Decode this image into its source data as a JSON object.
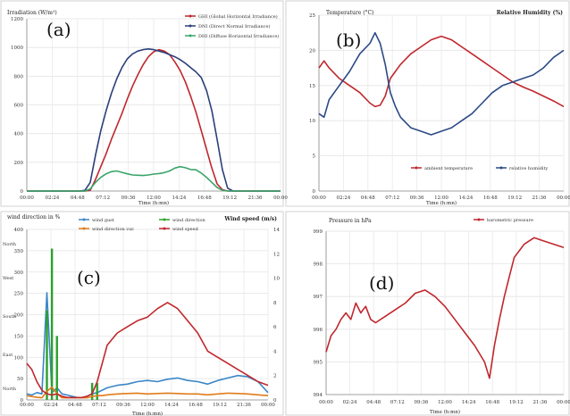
{
  "chart_data": [
    {
      "type": "line",
      "panel_label": "(a)",
      "title": "Irradiation (W/m²)",
      "xlabel": "Time (h:mn)",
      "x_ticks": [
        "00:00",
        "02:24",
        "04:48",
        "07:12",
        "09:36",
        "12:00",
        "14:24",
        "16:48",
        "19:12",
        "21:36",
        "00:00"
      ],
      "y_ticks": [
        "0",
        "200",
        "400",
        "600",
        "800",
        "1000",
        "1200"
      ],
      "ylim": [
        0,
        1200
      ],
      "grid": true,
      "legend_position": "top-right",
      "x": [
        0,
        1,
        2,
        3,
        4,
        5,
        5.5,
        6,
        6.5,
        7,
        7.5,
        8,
        8.5,
        9,
        9.5,
        10,
        10.5,
        11,
        11.5,
        12,
        12.5,
        13,
        13.5,
        14,
        14.5,
        15,
        15.5,
        16,
        16.5,
        17,
        17.5,
        18,
        18.5,
        19,
        19.5,
        20,
        21,
        22,
        23,
        24
      ],
      "series": [
        {
          "name": "GHI (Global Horizontal Irradiance)",
          "color": "#c0272d",
          "values": [
            0,
            0,
            0,
            0,
            0,
            0,
            0,
            5,
            80,
            170,
            260,
            360,
            450,
            540,
            640,
            730,
            810,
            880,
            935,
            970,
            985,
            975,
            950,
            900,
            840,
            760,
            660,
            550,
            420,
            290,
            160,
            50,
            10,
            0,
            0,
            0,
            0,
            0,
            0,
            0
          ]
        },
        {
          "name": "DNI (Direct Normal Irradiance)",
          "color": "#2b3f7a",
          "values": [
            0,
            0,
            0,
            0,
            0,
            0,
            5,
            60,
            250,
            420,
            560,
            680,
            780,
            860,
            920,
            955,
            975,
            985,
            990,
            985,
            975,
            965,
            950,
            935,
            915,
            890,
            860,
            830,
            790,
            700,
            560,
            360,
            150,
            20,
            0,
            0,
            0,
            0,
            0,
            0
          ]
        },
        {
          "name": "DHI (Diffuse Horizontal Irradiance)",
          "color": "#3aa56a",
          "values": [
            0,
            0,
            0,
            0,
            0,
            0,
            0,
            15,
            60,
            95,
            120,
            135,
            140,
            130,
            120,
            112,
            110,
            108,
            112,
            118,
            122,
            128,
            140,
            160,
            170,
            162,
            150,
            148,
            125,
            95,
            60,
            25,
            5,
            0,
            0,
            0,
            0,
            0,
            0,
            0
          ]
        }
      ]
    },
    {
      "type": "line",
      "panel_label": "(b)",
      "title": "Temperature (°C)",
      "y2label": "Relative Humidity (%)",
      "xlabel": "Time (h:mn)",
      "x_ticks": [
        "00:00",
        "02:24",
        "04:48",
        "07:12",
        "09:36",
        "12:00",
        "14:24",
        "16:48",
        "19:12",
        "21:36",
        "00:00"
      ],
      "y_ticks": [
        "0",
        "5",
        "10",
        "15",
        "20",
        "25"
      ],
      "ylim": [
        0,
        25
      ],
      "grid": true,
      "legend_position": "bottom-center",
      "x": [
        0,
        0.5,
        1,
        2,
        3,
        4,
        5,
        5.5,
        6,
        6.5,
        7,
        7.5,
        8,
        9,
        10,
        11,
        12,
        13,
        14,
        15,
        16,
        17,
        18,
        19,
        20,
        21,
        22,
        23,
        24
      ],
      "series": [
        {
          "name": "ambient temperature",
          "color": "#c0272d",
          "values": [
            17.5,
            18.5,
            17.5,
            16,
            15,
            14,
            12.5,
            12,
            12.2,
            13.5,
            16,
            17,
            18,
            19.5,
            20.5,
            21.5,
            22,
            21.5,
            20.5,
            19.5,
            18.5,
            17.5,
            16.5,
            15.5,
            14.8,
            14.2,
            13.5,
            12.8,
            12
          ]
        },
        {
          "name": "relative humidity",
          "color": "#2b4a86",
          "axis": "right",
          "values": [
            11,
            10.5,
            13,
            15,
            17,
            19.5,
            21,
            22.5,
            21,
            18,
            14,
            12,
            10.5,
            9,
            8.5,
            8,
            8.5,
            9,
            10,
            11,
            12.5,
            14,
            15,
            15.5,
            16,
            16.5,
            17.5,
            19,
            20
          ]
        }
      ]
    },
    {
      "type": "line",
      "panel_label": "(c)",
      "title": "wind direction in %",
      "y2label": "Wind speed (m/s)",
      "xlabel": "Time (h:mn)",
      "x_ticks": [
        "00:00",
        "02:24",
        "04:48",
        "07:12",
        "09:36",
        "12:00",
        "14:24",
        "16:48",
        "19:12",
        "21:36",
        "00:00"
      ],
      "y_ticks": [
        "0",
        "50",
        "100",
        "150",
        "200",
        "250",
        "300",
        "350",
        "400"
      ],
      "y2_ticks": [
        "0",
        "2",
        "4",
        "6",
        "8",
        "10",
        "12",
        "14"
      ],
      "direction_labels": [
        "North",
        "West",
        "South",
        "East",
        "North"
      ],
      "ylim": [
        0,
        400
      ],
      "y2lim": [
        0,
        14
      ],
      "grid": true,
      "legend_position": "top",
      "x": [
        0,
        0.5,
        1,
        1.5,
        2,
        2.5,
        3,
        3.5,
        4,
        4.5,
        5,
        5.5,
        6,
        6.5,
        7,
        7.5,
        8,
        9,
        10,
        11,
        12,
        13,
        14,
        15,
        16,
        17,
        18,
        19,
        20,
        21,
        22,
        23,
        24
      ],
      "series": [
        {
          "name": "wind gust",
          "color": "#3a86c8",
          "axis": "right",
          "values": [
            0.5,
            0.4,
            0.6,
            0.5,
            8.8,
            0.6,
            1,
            0.5,
            0.4,
            0.3,
            0.2,
            0.2,
            0.3,
            0.5,
            0.6,
            0.8,
            1,
            1.2,
            1.3,
            1.5,
            1.6,
            1.5,
            1.7,
            1.8,
            1.6,
            1.5,
            1.3,
            1.6,
            1.8,
            2,
            1.9,
            1.5,
            0.6
          ]
        },
        {
          "name": "wind direction",
          "color": "#2ca02c",
          "values": [
            0,
            0,
            0,
            0,
            210,
            355,
            150,
            0,
            0,
            0,
            0,
            0,
            0,
            40,
            40,
            0,
            0,
            0,
            0,
            0,
            0,
            0,
            0,
            0,
            0,
            0,
            0,
            0,
            0,
            0,
            0,
            0,
            0
          ]
        },
        {
          "name": "wind direction var.",
          "color": "#e07c1a",
          "values": [
            10,
            8,
            6,
            5,
            20,
            30,
            15,
            5,
            5,
            5,
            5,
            5,
            5,
            8,
            10,
            10,
            12,
            14,
            15,
            16,
            14,
            15,
            16,
            15,
            14,
            14,
            12,
            14,
            16,
            15,
            14,
            12,
            10
          ]
        },
        {
          "name": "wind speed",
          "color": "#c0272d",
          "axis": "right",
          "values": [
            3,
            2.5,
            1.5,
            0.8,
            0.5,
            0.4,
            0.5,
            0.3,
            0.2,
            0.2,
            0.2,
            0.2,
            0.3,
            0.5,
            1.5,
            3,
            4.5,
            5.5,
            6,
            6.5,
            6.8,
            7.5,
            8,
            7.5,
            6.5,
            5.5,
            4,
            3.5,
            3,
            2.5,
            2,
            1.5,
            1.2
          ]
        }
      ]
    },
    {
      "type": "line",
      "panel_label": "(d)",
      "title": "Pressure in hPa",
      "xlabel": "Time (h:mn)",
      "x_ticks": [
        "00:00",
        "02:24",
        "04:48",
        "07:12",
        "09:36",
        "12:00",
        "14:24",
        "16:48",
        "19:12",
        "21:36",
        "00:00"
      ],
      "y_ticks": [
        "994",
        "995",
        "996",
        "997",
        "998",
        "999"
      ],
      "ylim": [
        994,
        999
      ],
      "grid": true,
      "legend_position": "top-right",
      "x": [
        0,
        0.5,
        1,
        1.5,
        2,
        2.5,
        3,
        3.5,
        4,
        4.5,
        5,
        6,
        7,
        8,
        9,
        10,
        11,
        12,
        13,
        14,
        15,
        16,
        16.5,
        17,
        17.5,
        18,
        18.5,
        19,
        20,
        21,
        22,
        23,
        24
      ],
      "series": [
        {
          "name": "barometric pressure",
          "color": "#c0272d",
          "values": [
            995.3,
            995.8,
            996,
            996.3,
            996.5,
            996.3,
            996.8,
            996.5,
            996.7,
            996.3,
            996.2,
            996.4,
            996.6,
            996.8,
            997.1,
            997.2,
            997,
            996.7,
            996.3,
            995.9,
            995.5,
            995,
            994.5,
            995.5,
            996.3,
            997,
            997.6,
            998.2,
            998.6,
            998.8,
            998.7,
            998.6,
            998.5
          ]
        }
      ]
    }
  ]
}
